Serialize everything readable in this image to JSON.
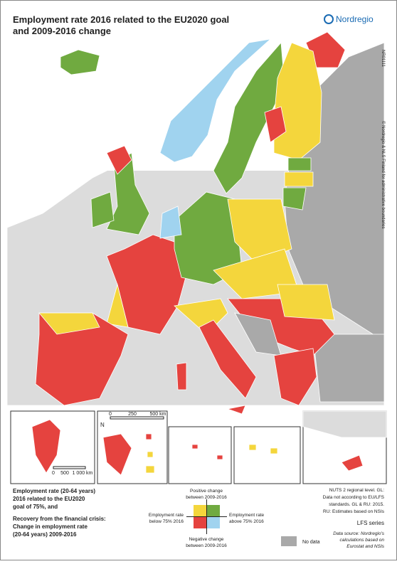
{
  "header": {
    "title": [
      "Employment rate 2016 related to the EU2020 goal",
      "and 2009-2016 change"
    ],
    "logo": "Nordregio"
  },
  "side_notes": {
    "map_id": "NR01111",
    "copyright": "© Nordregio & NLS Finland for administrative boundaries"
  },
  "scale_bar": {
    "north": "N",
    "labels": [
      "0",
      "250",
      "500 km"
    ]
  },
  "greenland_scale": {
    "labels": [
      "0",
      "500",
      "1 000 km"
    ]
  },
  "legend": {
    "heading_1": [
      "Employment rate (20-64 years)",
      "2016 related to the EU2020",
      "goal of 75%, and"
    ],
    "heading_2": [
      "Recovery from the financial crisis:",
      "Change in employment rate",
      "(20-64 years) 2009-2016"
    ],
    "top": [
      "Positive change",
      "between 2009-2016"
    ],
    "bottom": [
      "Negative change",
      "between 2009-2016"
    ],
    "left": [
      "Employment rate",
      "below 75% 2016"
    ],
    "right": [
      "Employment rate",
      "above 75% 2016"
    ],
    "no_data": "No data"
  },
  "notes": {
    "nuts": [
      "NUTS 2 regional level. GL:",
      "Data not according to EU/LFS",
      "standards. GL & RU: 2015.",
      "RU: Estimates based on NSIs"
    ],
    "series": "LFS series",
    "source": [
      "Data source: Nordregio's",
      "calculations based on",
      "Eurostat and NSIs"
    ]
  }
}
